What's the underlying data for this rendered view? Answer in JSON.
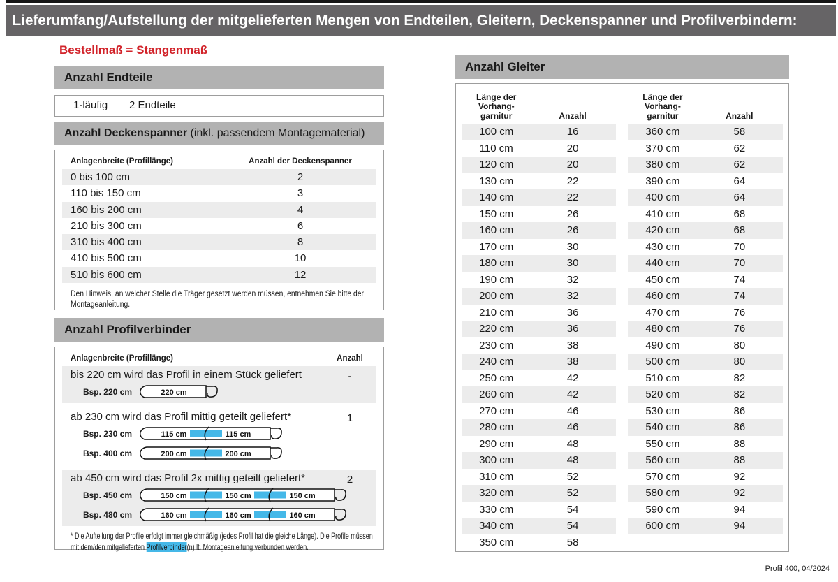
{
  "page": {
    "title": "Lieferumfang/Aufstellung der mitgelieferten Mengen von Endteilen, Gleitern, Deckenspanner und Profilverbindern:",
    "subtitle": "Bestellmaß = Stangenmaß",
    "footer": "Profil 400, 04/2024"
  },
  "colors": {
    "accent_red": "#d2232a",
    "title_bar_gray": "#666466",
    "section_header_gray": "#b2b2b2",
    "row_stripe_gray": "#ececec",
    "connector_blue": "#45b8e8",
    "border_gray": "#9d9d9d"
  },
  "endteile": {
    "header": "Anzahl Endteile",
    "config": "1-läufig",
    "count": "2 Endteile"
  },
  "deckenspanner": {
    "header_bold": "Anzahl Deckenspanner",
    "header_suffix": " (inkl. passendem Montagematerial)",
    "col1": "Anlagenbreite (Profillänge)",
    "col2": "Anzahl der Deckenspanner",
    "rows": [
      [
        "0 bis 100 cm",
        "2"
      ],
      [
        "110 bis 150 cm",
        "3"
      ],
      [
        "160 bis 200 cm",
        "4"
      ],
      [
        "210 bis 300 cm",
        "6"
      ],
      [
        "310 bis 400 cm",
        "8"
      ],
      [
        "410 bis 500 cm",
        "10"
      ],
      [
        "510 bis 600 cm",
        "12"
      ]
    ],
    "note": "Den Hinweis, an welcher Stelle die Träger gesetzt werden müssen, entnehmen Sie bitte der Montageanleitung."
  },
  "profilverbinder": {
    "header": "Anzahl Profilverbinder",
    "col1": "Anlagenbreite (Profillänge)",
    "col2": "Anzahl",
    "rows": [
      {
        "text": "bis 220 cm wird das Profil in einem Stück geliefert",
        "anzahl": "-",
        "diagrams": [
          {
            "label": "Bsp. 220 cm",
            "segments": [
              "220 cm"
            ]
          }
        ]
      },
      {
        "text": "ab 230 cm wird das Profil mittig geteilt geliefert*",
        "anzahl": "1",
        "diagrams": [
          {
            "label": "Bsp. 230 cm",
            "segments": [
              "115 cm",
              "115 cm"
            ]
          },
          {
            "label": "Bsp. 400 cm",
            "segments": [
              "200 cm",
              "200 cm"
            ]
          }
        ]
      },
      {
        "text": "ab 450 cm wird das Profil 2x mittig geteilt geliefert*",
        "anzahl": "2",
        "diagrams": [
          {
            "label": "Bsp. 450 cm",
            "segments": [
              "150 cm",
              "150 cm",
              "150 cm"
            ]
          },
          {
            "label": "Bsp. 480 cm",
            "segments": [
              "160 cm",
              "160 cm",
              "160 cm"
            ]
          }
        ]
      }
    ],
    "footnote": [
      "* Die Aufteilung der Profile erfolgt immer gleichmäßig (jedes Profil hat die gleiche Länge). Die Profile müssen mit dem/den mitgelieferten ",
      "Profilverbinder",
      "(n) lt. Montageanleitung verbunden werden."
    ]
  },
  "gleiter": {
    "header": "Anzahl Gleiter",
    "col1_lines": [
      "Länge der",
      "Vorhang-",
      "garnitur"
    ],
    "col2": "Anzahl",
    "left_rows": [
      [
        "100 cm",
        "16"
      ],
      [
        "110 cm",
        "20"
      ],
      [
        "120 cm",
        "20"
      ],
      [
        "130 cm",
        "22"
      ],
      [
        "140 cm",
        "22"
      ],
      [
        "150 cm",
        "26"
      ],
      [
        "160 cm",
        "26"
      ],
      [
        "170 cm",
        "30"
      ],
      [
        "180 cm",
        "30"
      ],
      [
        "190 cm",
        "32"
      ],
      [
        "200 cm",
        "32"
      ],
      [
        "210 cm",
        "36"
      ],
      [
        "220 cm",
        "36"
      ],
      [
        "230 cm",
        "38"
      ],
      [
        "240 cm",
        "38"
      ],
      [
        "250 cm",
        "42"
      ],
      [
        "260 cm",
        "42"
      ],
      [
        "270 cm",
        "46"
      ],
      [
        "280 cm",
        "46"
      ],
      [
        "290 cm",
        "48"
      ],
      [
        "300 cm",
        "48"
      ],
      [
        "310 cm",
        "52"
      ],
      [
        "320 cm",
        "52"
      ],
      [
        "330 cm",
        "54"
      ],
      [
        "340 cm",
        "54"
      ],
      [
        "350 cm",
        "58"
      ]
    ],
    "right_rows": [
      [
        "360 cm",
        "58"
      ],
      [
        "370 cm",
        "62"
      ],
      [
        "380 cm",
        "62"
      ],
      [
        "390 cm",
        "64"
      ],
      [
        "400 cm",
        "64"
      ],
      [
        "410 cm",
        "68"
      ],
      [
        "420 cm",
        "68"
      ],
      [
        "430 cm",
        "70"
      ],
      [
        "440 cm",
        "70"
      ],
      [
        "450 cm",
        "74"
      ],
      [
        "460 cm",
        "74"
      ],
      [
        "470 cm",
        "76"
      ],
      [
        "480 cm",
        "76"
      ],
      [
        "490 cm",
        "80"
      ],
      [
        "500 cm",
        "80"
      ],
      [
        "510 cm",
        "82"
      ],
      [
        "520 cm",
        "82"
      ],
      [
        "530 cm",
        "86"
      ],
      [
        "540 cm",
        "86"
      ],
      [
        "550 cm",
        "88"
      ],
      [
        "560 cm",
        "88"
      ],
      [
        "570 cm",
        "92"
      ],
      [
        "580 cm",
        "92"
      ],
      [
        "590 cm",
        "94"
      ],
      [
        "600 cm",
        "94"
      ]
    ]
  }
}
